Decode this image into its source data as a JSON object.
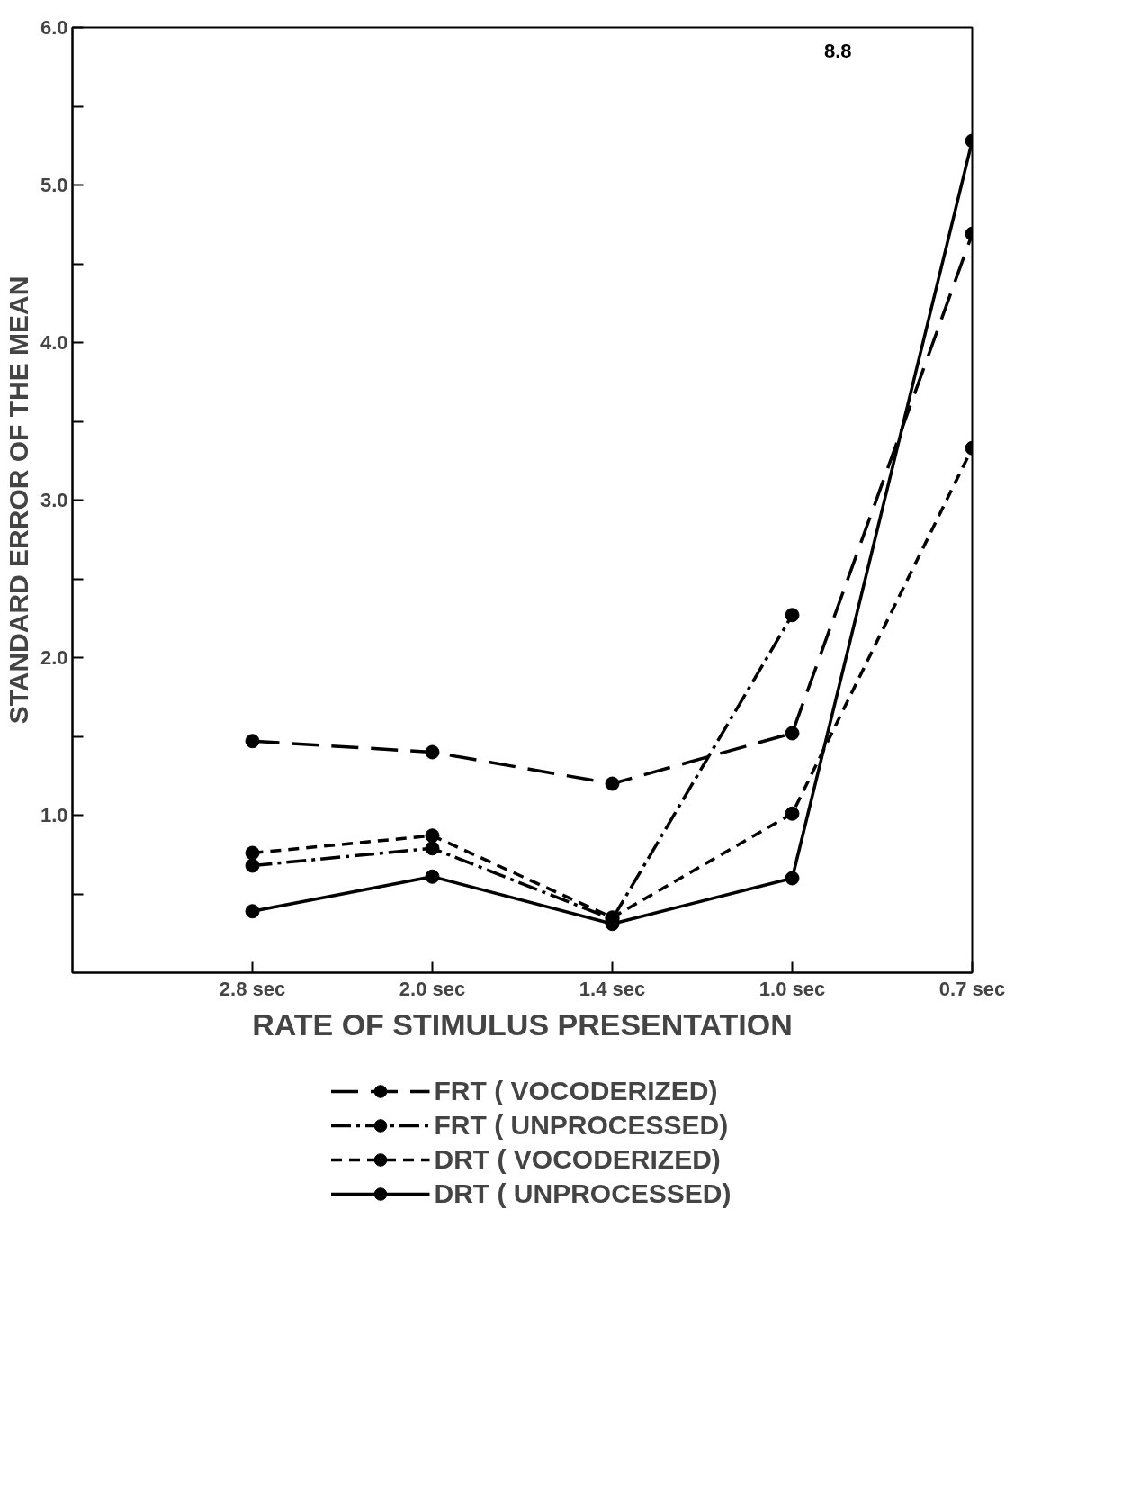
{
  "chart_data": {
    "type": "line",
    "xlabel": "RATE OF STIMULUS PRESENTATION",
    "ylabel": "STANDARD ERROR OF THE MEAN",
    "categories": [
      "2.8 sec",
      "2.0 sec",
      "1.4 sec",
      "1.0 sec",
      "0.7 sec"
    ],
    "series": [
      {
        "name": "FRT ( VOCODERIZED)",
        "color": "#000000",
        "line_style": "longdash",
        "values": [
          1.47,
          1.4,
          1.2,
          1.52,
          4.69
        ]
      },
      {
        "name": "FRT ( UNPROCESSED)",
        "color": "#000000",
        "line_style": "dashdot",
        "values": [
          0.68,
          0.79,
          0.34,
          2.27,
          null
        ]
      },
      {
        "name": "DRT ( VOCODERIZED)",
        "color": "#000000",
        "line_style": "dashed",
        "values": [
          0.76,
          0.87,
          0.35,
          1.01,
          3.33
        ]
      },
      {
        "name": "DRT ( UNPROCESSED)",
        "color": "#000000",
        "line_style": "solid",
        "values": [
          0.39,
          0.61,
          0.31,
          0.6,
          5.28
        ]
      }
    ],
    "ylim": [
      0,
      6
    ],
    "yticks": [
      {
        "value": 0.5,
        "label": null
      },
      {
        "value": 1,
        "label": "1.0"
      },
      {
        "value": 1.5,
        "label": null
      },
      {
        "value": 2,
        "label": "2.0"
      },
      {
        "value": 2.5,
        "label": null
      },
      {
        "value": 3,
        "label": "3.0"
      },
      {
        "value": 3.5,
        "label": null
      },
      {
        "value": 4,
        "label": "4.0"
      },
      {
        "value": 4.5,
        "label": null
      },
      {
        "value": 5,
        "label": "5.0"
      },
      {
        "value": 5.5,
        "label": null
      },
      {
        "value": 6,
        "label": "6.0"
      }
    ],
    "annotations": [
      "8.8"
    ],
    "marker": "circle",
    "grid": false,
    "legend": "bottom"
  }
}
